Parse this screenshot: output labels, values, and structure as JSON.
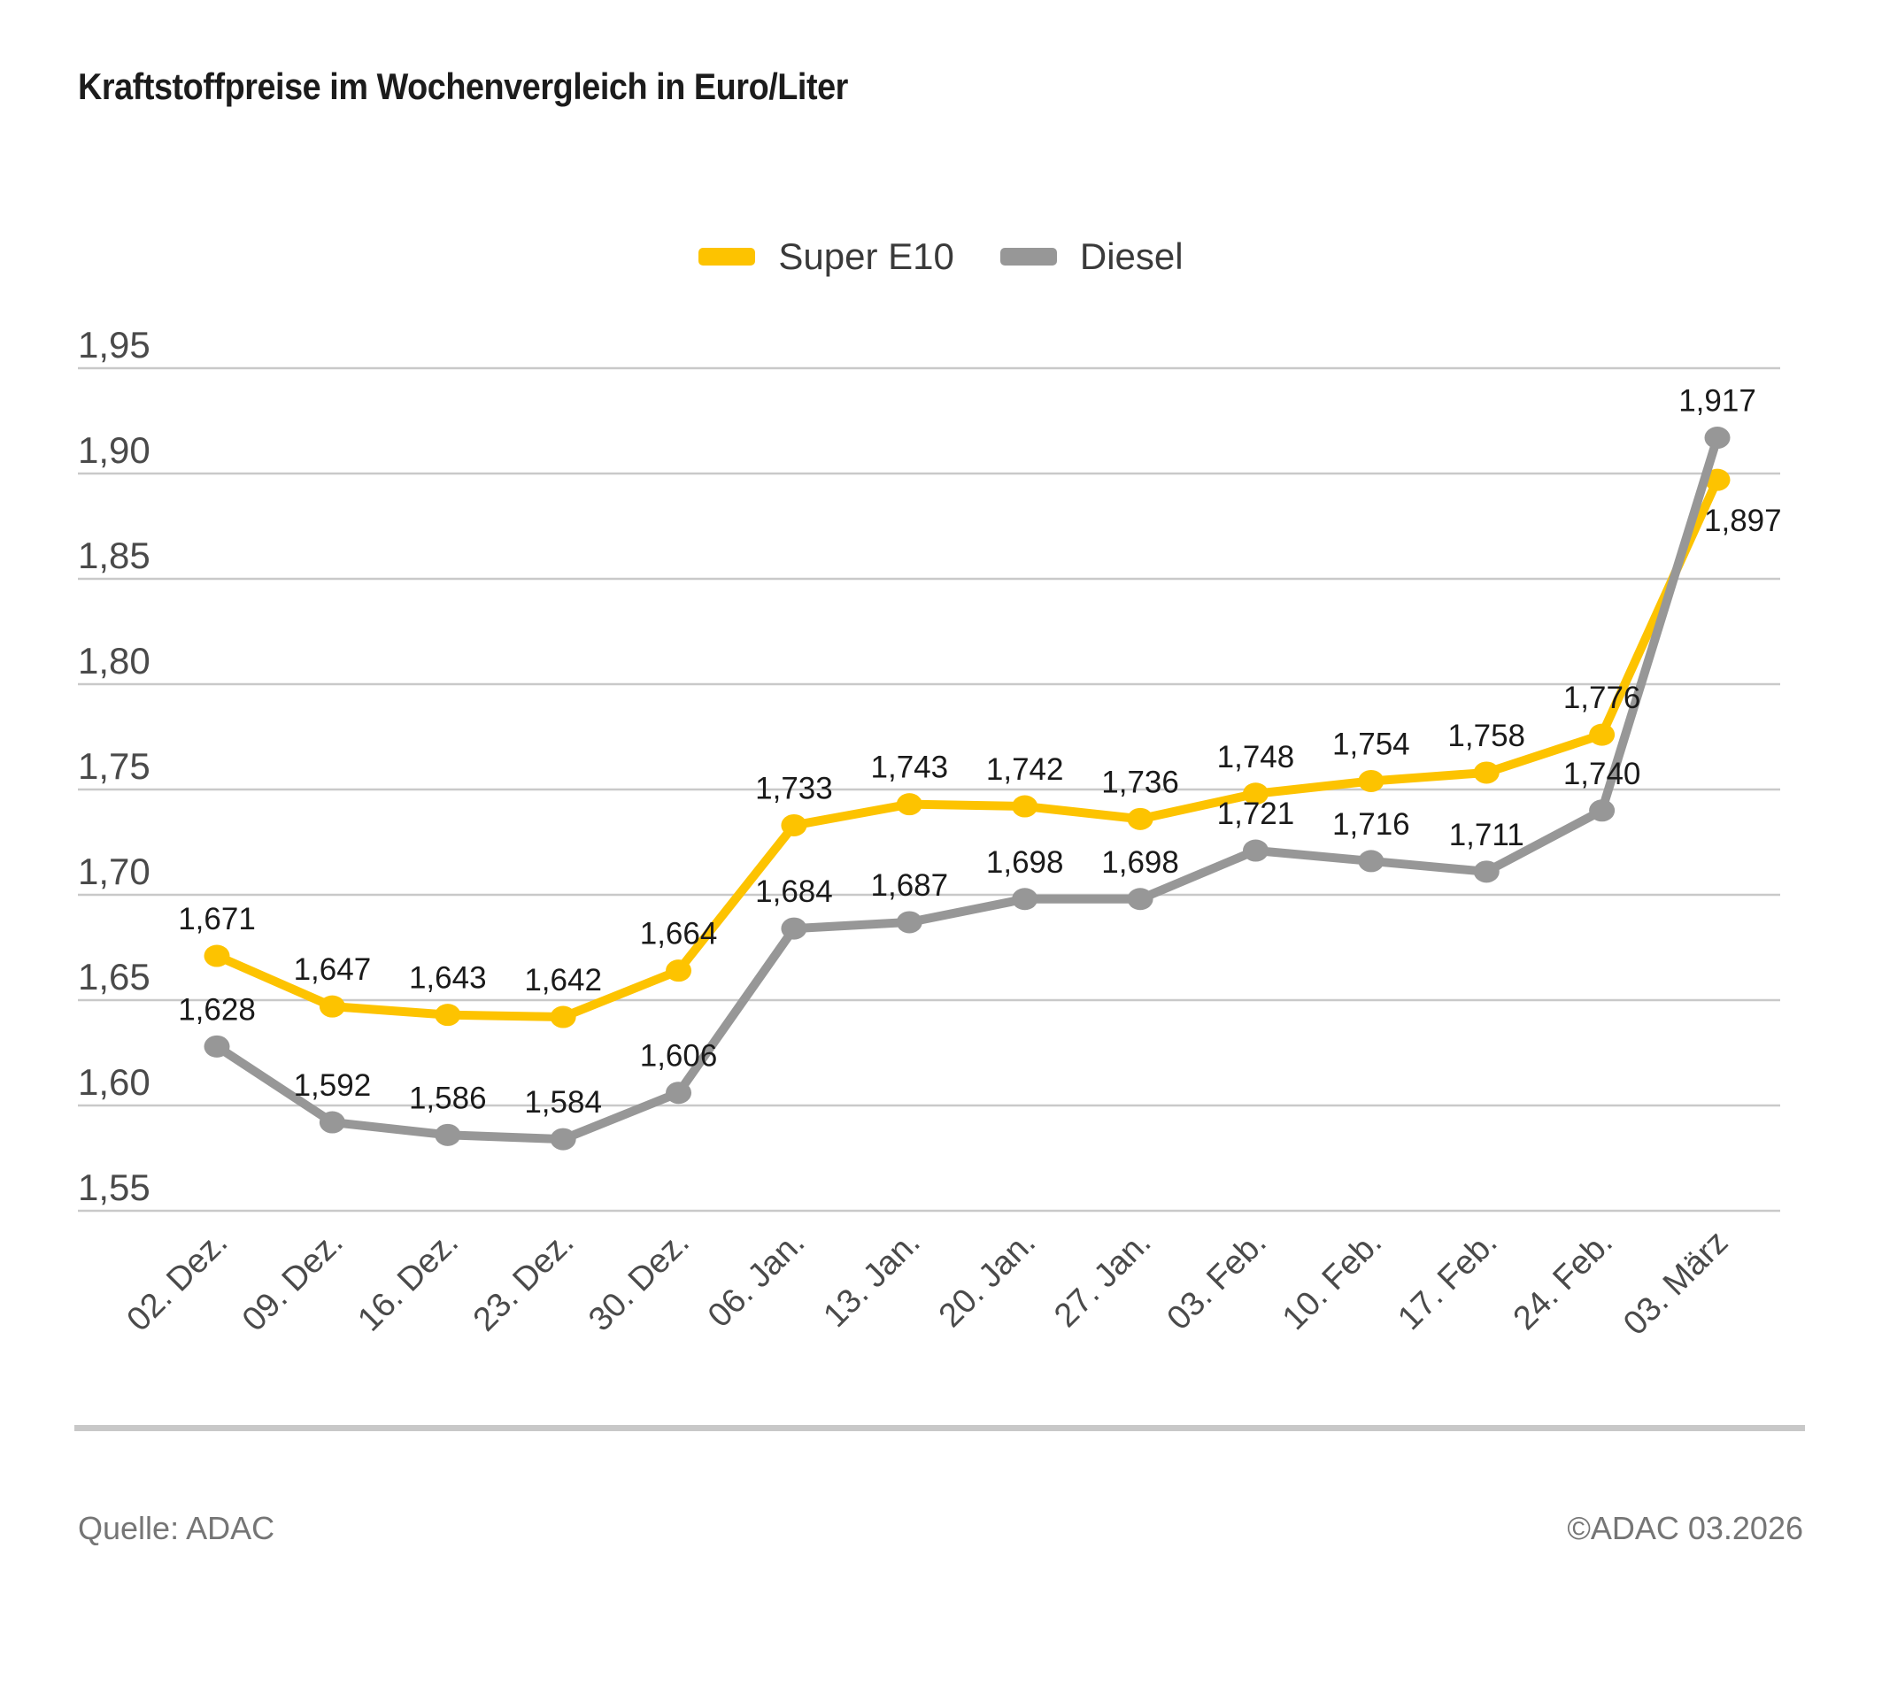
{
  "header": {
    "title": "Kraftstoffpreise im Wochenvergleich in Euro/Liter"
  },
  "footer": {
    "source": "Quelle: ADAC",
    "copyright": "©ADAC 03.2026"
  },
  "chart_data": {
    "type": "line",
    "title": "Kraftstoffpreise im Wochenvergleich in Euro/Liter",
    "categories": [
      "02. Dez.",
      "09. Dez.",
      "16. Dez.",
      "23. Dez.",
      "30. Dez.",
      "06. Jan.",
      "13. Jan.",
      "20. Jan.",
      "27. Jan.",
      "03. Feb.",
      "10. Feb.",
      "17. Feb.",
      "24. Feb.",
      "03. März"
    ],
    "series": [
      {
        "name": "Super E10",
        "color": "#FDC300",
        "values": [
          1.671,
          1.647,
          1.643,
          1.642,
          1.664,
          1.733,
          1.743,
          1.742,
          1.736,
          1.748,
          1.754,
          1.758,
          1.776,
          1.897
        ],
        "labels": [
          "1,671",
          "1,647",
          "1,643",
          "1,642",
          "1,664",
          "1,733",
          "1,743",
          "1,742",
          "1,736",
          "1,748",
          "1,754",
          "1,758",
          "1,776",
          "1,897"
        ]
      },
      {
        "name": "Diesel",
        "color": "#979797",
        "values": [
          1.628,
          1.592,
          1.586,
          1.584,
          1.606,
          1.684,
          1.687,
          1.698,
          1.698,
          1.721,
          1.716,
          1.711,
          1.74,
          1.917
        ],
        "labels": [
          "1,628",
          "1,592",
          "1,586",
          "1,584",
          "1,606",
          "1,684",
          "1,687",
          "1,698",
          "1,698",
          "1,721",
          "1,716",
          "1,711",
          "1,740",
          "1,917"
        ]
      }
    ],
    "y_axis": {
      "min": 1.55,
      "max": 1.95,
      "step": 0.05,
      "tick_labels": [
        "1,95",
        "1,90",
        "1,85",
        "1,80",
        "1,75",
        "1,70",
        "1,65",
        "1,60",
        "1,55"
      ]
    },
    "layout": {
      "grid": true,
      "legend_position": "top-center",
      "x_label_rotation_deg": -45
    },
    "colors": {
      "grid": "#c9c9c9",
      "axis_text": "#4a4a4a",
      "data_label": "#1a1a1a"
    }
  }
}
